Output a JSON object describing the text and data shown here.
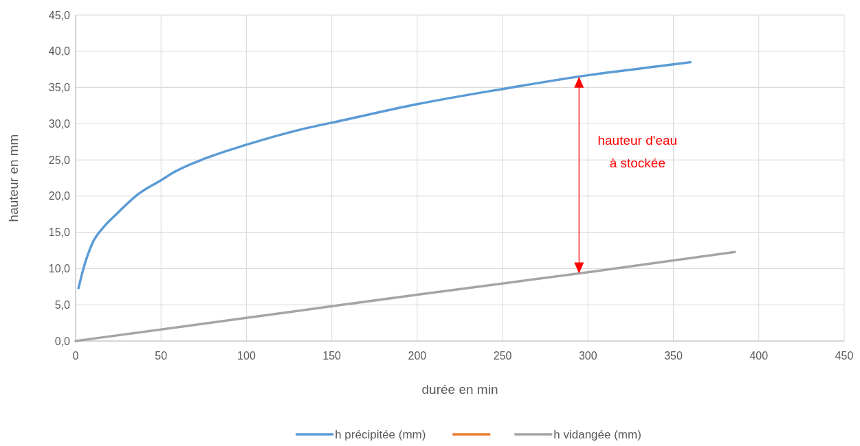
{
  "chart_data": {
    "type": "line",
    "xlabel": "durée en min",
    "ylabel": "hauteur en mm",
    "xlim": [
      0,
      450
    ],
    "xticks": [
      0,
      50,
      100,
      150,
      200,
      250,
      300,
      350,
      400,
      450
    ],
    "ylim": [
      0,
      45
    ],
    "yticks": [
      {
        "value": 0,
        "label": "0,0"
      },
      {
        "value": 5,
        "label": "5,0"
      },
      {
        "value": 10,
        "label": "10,0"
      },
      {
        "value": 15,
        "label": "15,0"
      },
      {
        "value": 20,
        "label": "20,0"
      },
      {
        "value": 25,
        "label": "25,0"
      },
      {
        "value": 30,
        "label": "30,0"
      },
      {
        "value": 35,
        "label": "35,0"
      },
      {
        "value": 40,
        "label": "40,0"
      },
      {
        "value": 45,
        "label": "45,0"
      }
    ],
    "grid": true,
    "legend": "bottom",
    "marker": "none",
    "line_style": "solid",
    "series": [
      {
        "name": "h précipitée (mm)",
        "color": "#5b9bd5",
        "x": [
          1.7,
          4.7,
          10,
          16.7,
          23.4,
          36.8,
          50,
          57.5,
          76.9,
          100,
          130,
          157,
          200,
          250,
          300,
          350,
          360
        ],
        "values": [
          7.3,
          10.1,
          13.6,
          15.8,
          17.4,
          20.3,
          22.2,
          23.3,
          25.3,
          27.1,
          29.1,
          30.5,
          32.7,
          34.8,
          36.7,
          38.2,
          38.5
        ]
      },
      {
        "color": "#ed7d31",
        "values": [
          null
        ]
      },
      {
        "name": "h vidangée (mm)",
        "color": "#a5a5a5",
        "x": [
          0,
          100,
          200,
          300,
          386
        ],
        "values": [
          0,
          3.2,
          6.4,
          9.5,
          12.3
        ]
      }
    ],
    "annotations": [
      "hauteur d'eau\nà stockée"
    ]
  }
}
